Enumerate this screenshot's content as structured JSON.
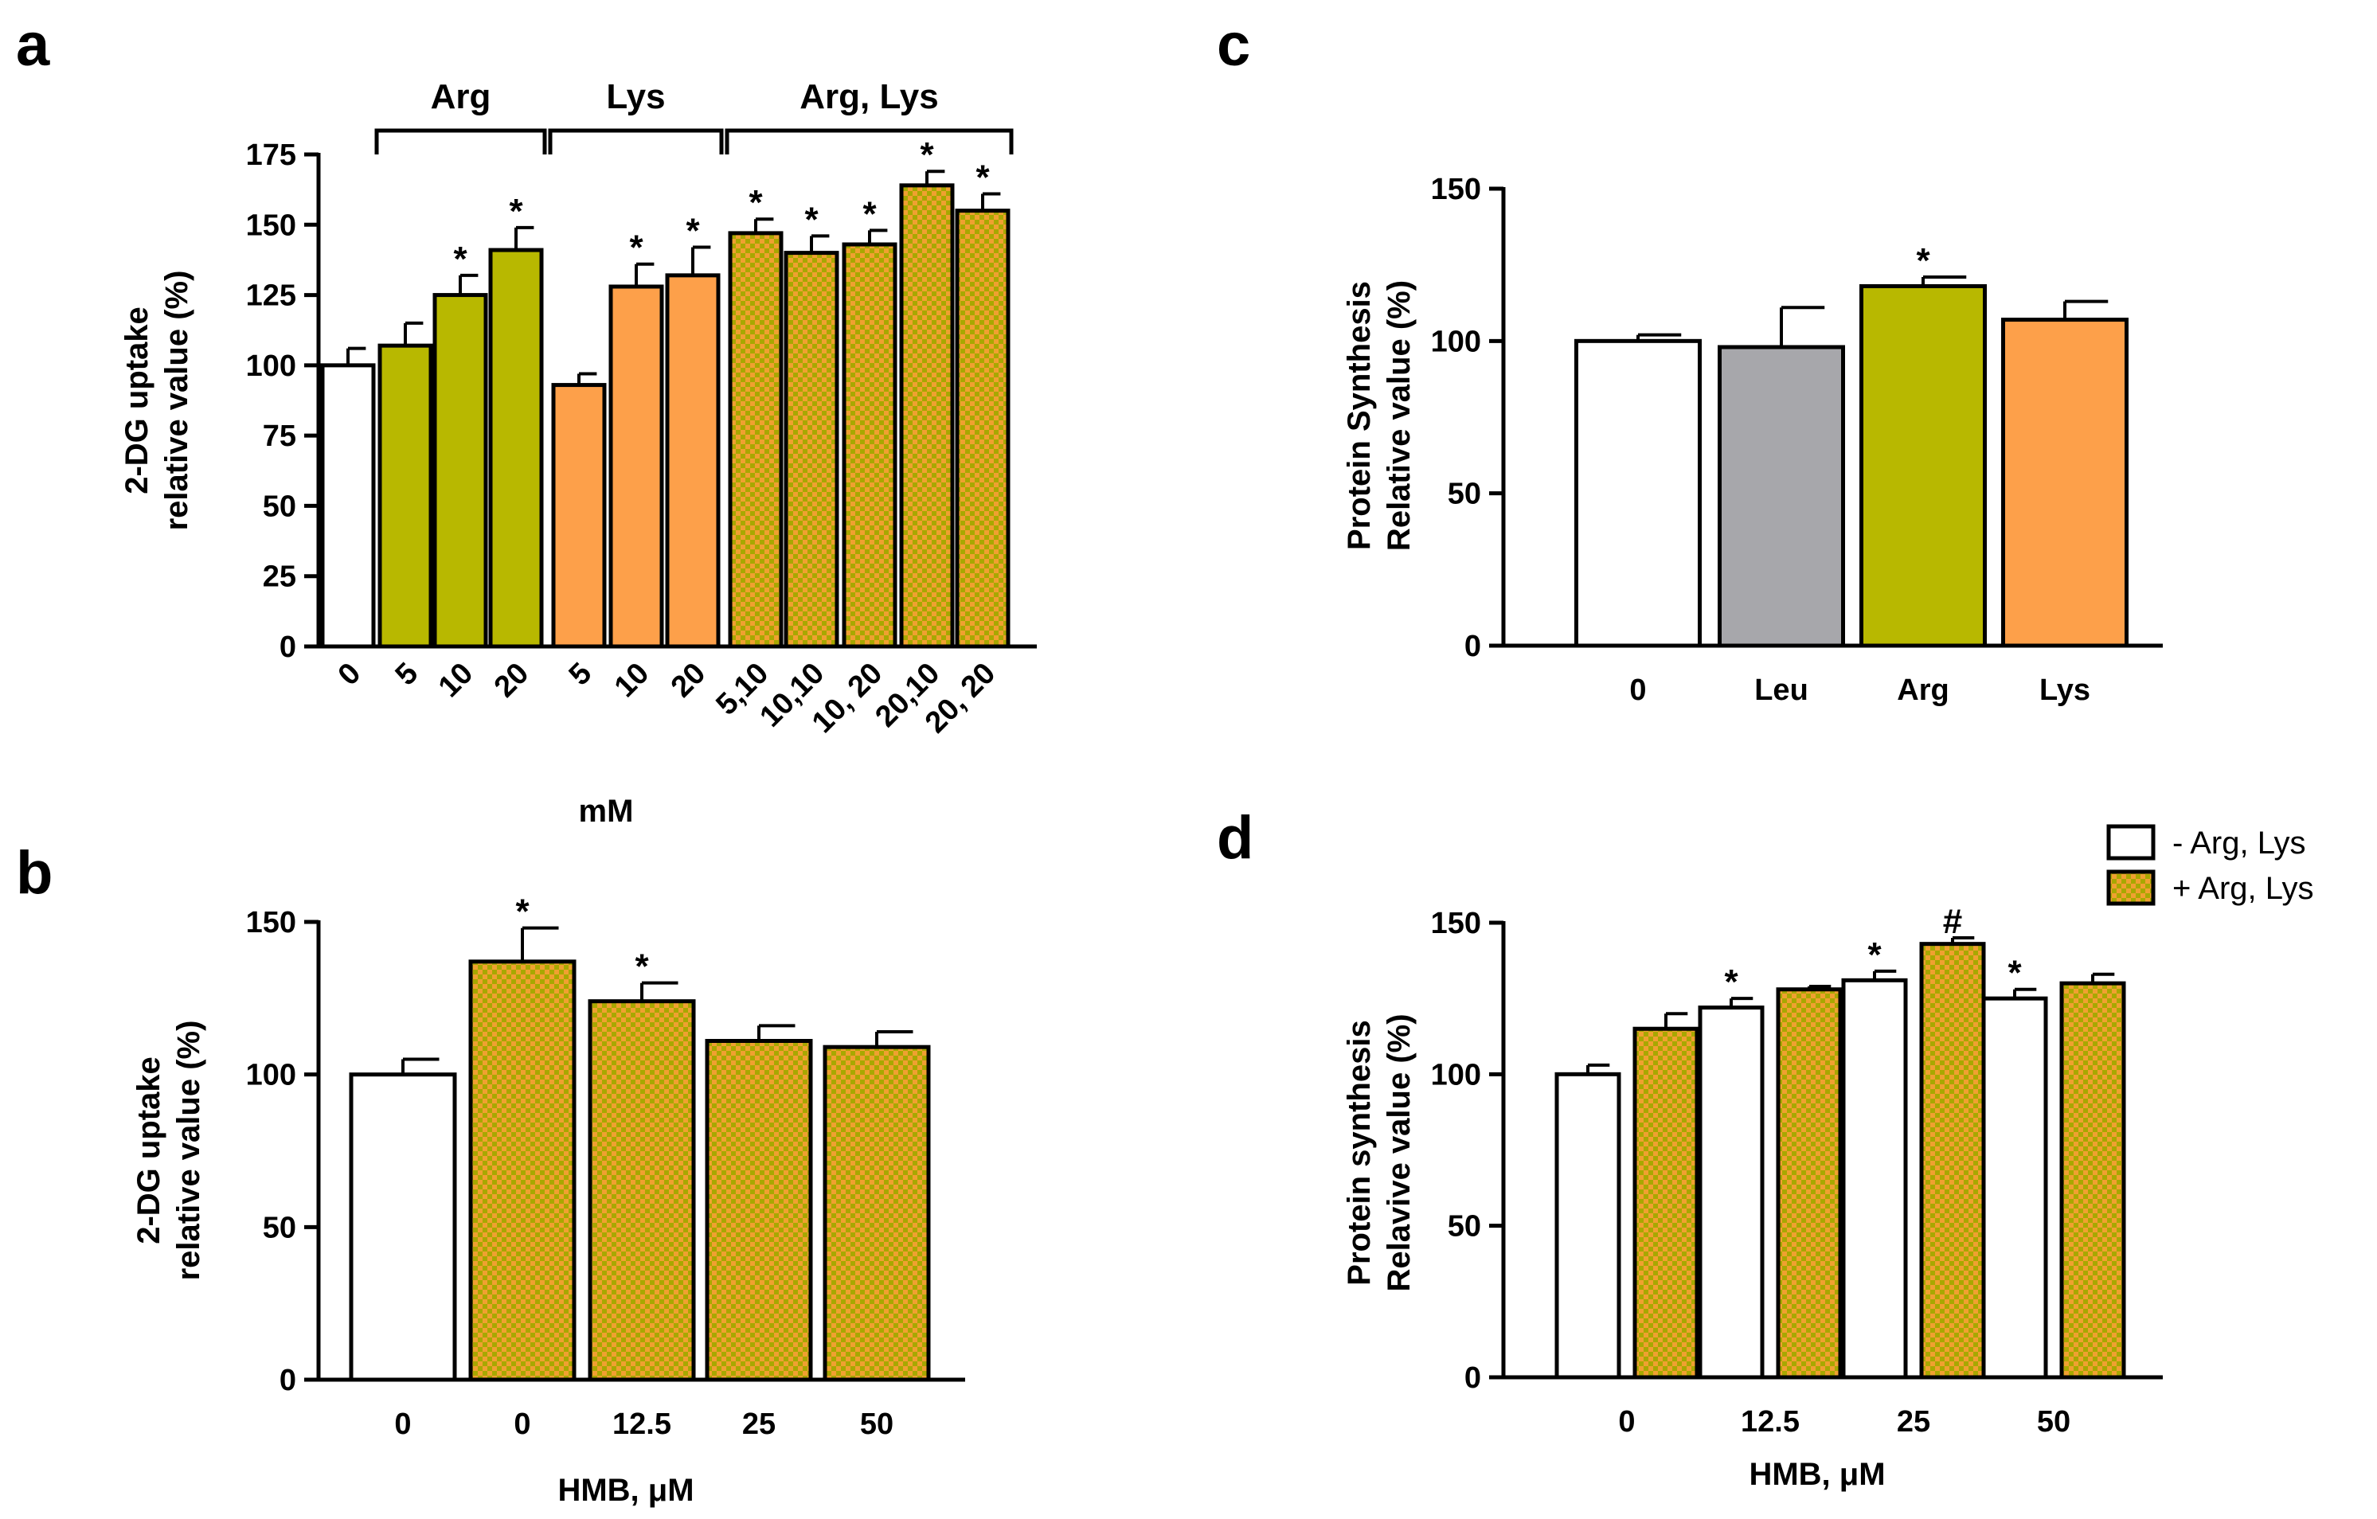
{
  "colors": {
    "control": "#ffffff",
    "leu": "#a7a7ab",
    "arg": "#b8b800",
    "lys": "#fda04a",
    "combo_base": "#f0a030",
    "combo_check": "#a8a800",
    "stroke": "#000000"
  },
  "chart_data": [
    {
      "panel": "a",
      "type": "bar",
      "title": "",
      "xlabel": "mM",
      "ylabel_lines": [
        "2-DG uptake",
        "relative value (%)"
      ],
      "ylim": [
        0,
        175
      ],
      "yticks": [
        "0",
        "25",
        "50",
        "75",
        "100",
        "125",
        "150",
        "175"
      ],
      "categories": [
        "0",
        "5",
        "10",
        "20",
        "5",
        "10",
        "20",
        "5,10",
        "10,10",
        "10, 20",
        "20,10",
        "20, 20"
      ],
      "values": [
        100,
        107,
        125,
        141,
        93,
        128,
        132,
        147,
        140,
        143,
        164,
        155
      ],
      "errors": [
        6,
        8,
        7,
        8,
        4,
        8,
        10,
        5,
        6,
        5,
        5,
        6
      ],
      "fills": [
        "control",
        "arg",
        "arg",
        "arg",
        "lys",
        "lys",
        "lys",
        "combo",
        "combo",
        "combo",
        "combo",
        "combo"
      ],
      "significance": [
        "",
        "",
        "*",
        "*",
        "",
        "*",
        "*",
        "*",
        "*",
        "*",
        "*",
        "*"
      ],
      "groups": [
        {
          "label": "Arg",
          "from": 1,
          "to": 3
        },
        {
          "label": "Lys",
          "from": 4,
          "to": 6
        },
        {
          "label": "Arg, Lys",
          "from": 7,
          "to": 11
        }
      ]
    },
    {
      "panel": "b",
      "type": "bar",
      "title": "",
      "xlabel": "HMB, μM",
      "ylabel_lines": [
        "2-DG uptake",
        "relative value (%)"
      ],
      "ylim": [
        0,
        150
      ],
      "yticks": [
        "0",
        "50",
        "100",
        "150"
      ],
      "categories": [
        "0",
        "0",
        "12.5",
        "25",
        "50"
      ],
      "values": [
        100,
        137,
        124,
        111,
        109
      ],
      "errors": [
        5,
        11,
        6,
        5,
        5
      ],
      "fills": [
        "control",
        "combo",
        "combo",
        "combo",
        "combo"
      ],
      "significance": [
        "",
        "*",
        "*",
        "",
        ""
      ]
    },
    {
      "panel": "c",
      "type": "bar",
      "title": "",
      "xlabel": "",
      "ylabel_lines": [
        "Protein Synthesis",
        "Relative value (%)"
      ],
      "ylim": [
        0,
        150
      ],
      "yticks": [
        "0",
        "50",
        "100",
        "150"
      ],
      "categories": [
        "0",
        "Leu",
        "Arg",
        "Lys"
      ],
      "values": [
        100,
        98,
        118,
        107
      ],
      "errors": [
        2,
        13,
        3,
        6
      ],
      "fills": [
        "control",
        "leu",
        "arg",
        "lys"
      ],
      "significance": [
        "",
        "",
        "*",
        ""
      ]
    },
    {
      "panel": "d",
      "type": "bar",
      "title": "",
      "xlabel": "HMB, μM",
      "ylabel_lines": [
        "Protein synthesis",
        "Relavive value (%)"
      ],
      "ylim": [
        0,
        150
      ],
      "yticks": [
        "0",
        "50",
        "100",
        "150"
      ],
      "categories": [
        "0",
        "12.5",
        "25",
        "50"
      ],
      "series": [
        {
          "name": "-  Arg, Lys",
          "fill": "control",
          "values": [
            100,
            122,
            131,
            125
          ],
          "errors": [
            3,
            3,
            3,
            3
          ],
          "significance": [
            "",
            "*",
            "*",
            "*"
          ]
        },
        {
          "name": "+ Arg, Lys",
          "fill": "combo",
          "values": [
            115,
            128,
            143,
            130
          ],
          "errors": [
            5,
            1,
            2,
            3
          ],
          "significance": [
            "",
            "",
            "#",
            ""
          ]
        }
      ],
      "legend_position": "top-right"
    }
  ]
}
